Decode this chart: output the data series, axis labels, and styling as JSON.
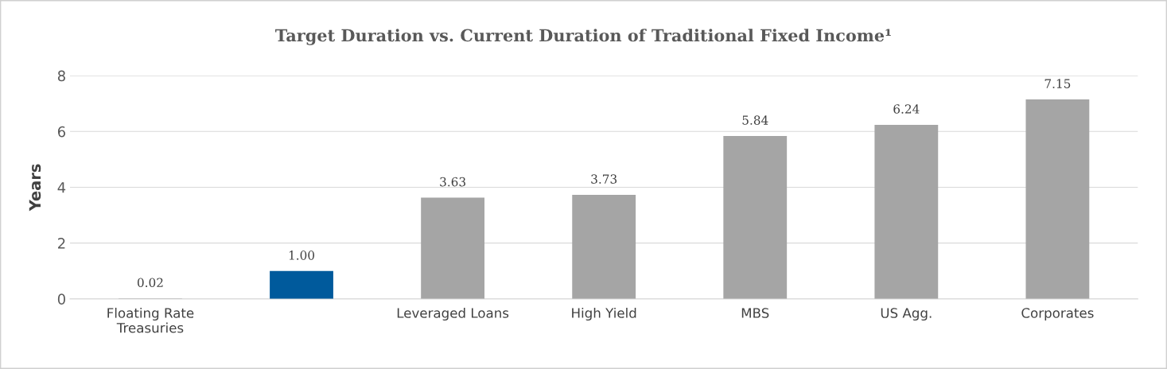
{
  "chart_data": {
    "type": "bar",
    "title": "Target Duration vs. Current Duration of Traditional Fixed Income¹",
    "ylabel": "Years",
    "categories": [
      "Floating Rate\nTreasuries",
      null,
      "Leveraged Loans",
      "High Yield",
      "MBS",
      "US Agg.",
      "Corporates"
    ],
    "values": [
      0.02,
      1.0,
      3.63,
      3.73,
      5.84,
      6.24,
      7.15
    ],
    "colors": [
      "#a5a5a5",
      "#005a9c",
      "#a5a5a5",
      "#a5a5a5",
      "#a5a5a5",
      "#a5a5a5",
      "#a5a5a5"
    ],
    "value_labels": [
      "0.02",
      "1.00",
      "3.63",
      "3.73",
      "5.84",
      "6.24",
      "7.15"
    ],
    "ylim": [
      0,
      8
    ],
    "yticks": [
      0,
      2,
      4,
      6,
      8
    ],
    "grid": "y",
    "legend": false
  }
}
